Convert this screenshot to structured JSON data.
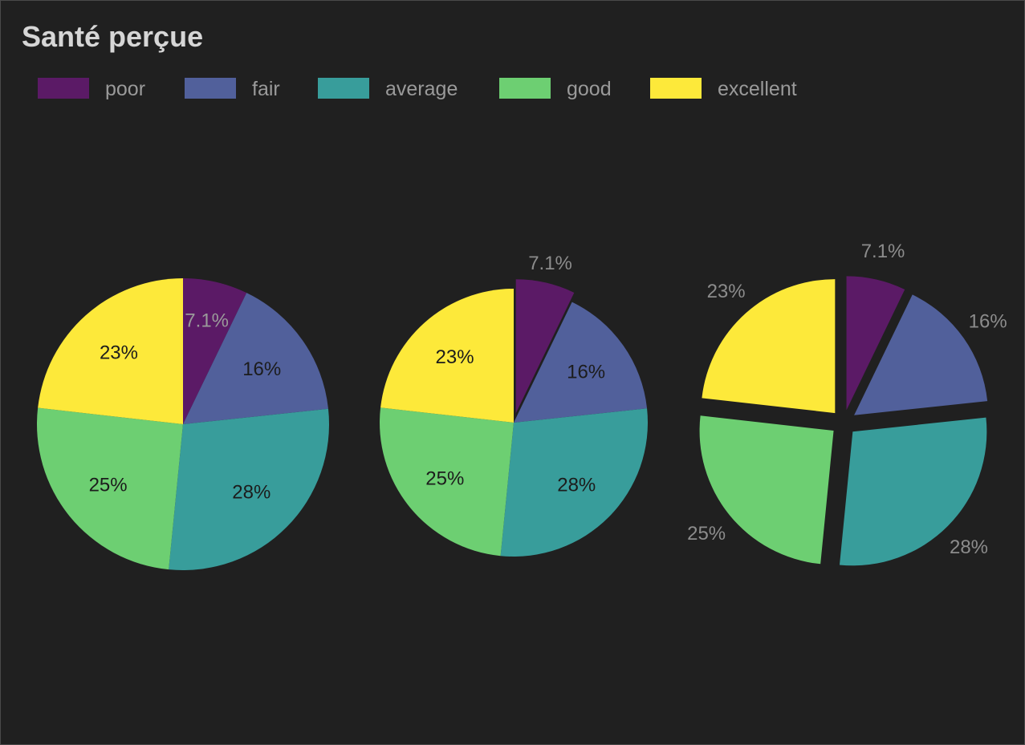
{
  "chart_data": {
    "type": "pie",
    "title": "Santé perçue",
    "legend_position": "top-left",
    "categories": [
      "poor",
      "fair",
      "average",
      "good",
      "excellent"
    ],
    "colors": [
      "#5b1a66",
      "#51609b",
      "#389d9b",
      "#6dcf72",
      "#fde93a"
    ],
    "values": [
      7.1,
      16,
      28,
      25,
      23
    ],
    "value_labels": [
      "7.1%",
      "16%",
      "28%",
      "25%",
      "23%"
    ],
    "label_color_inside": "#1c1c1c",
    "label_color_outside": "#8c8c8c",
    "pies": [
      {
        "name": "",
        "exploded": [
          false,
          false,
          false,
          false,
          false
        ]
      },
      {
        "name": "",
        "exploded": [
          true,
          false,
          false,
          false,
          false
        ]
      },
      {
        "name": "",
        "exploded": [
          true,
          true,
          true,
          true,
          true
        ]
      }
    ]
  }
}
